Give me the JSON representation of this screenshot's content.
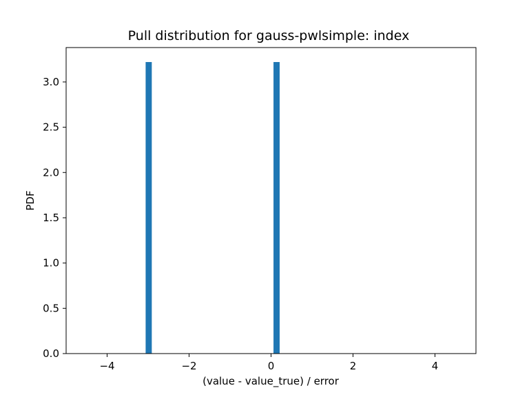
{
  "chart_data": {
    "type": "bar",
    "title": "Pull distribution for gauss-pwlsimple: index",
    "xlabel": "(value - value_true) / error",
    "ylabel": "PDF",
    "xlim": [
      -5,
      5
    ],
    "ylim": [
      0,
      3.38
    ],
    "x_ticks": [
      -4,
      -2,
      0,
      2,
      4
    ],
    "x_tick_labels": [
      "−4",
      "−2",
      "0",
      "2",
      "4"
    ],
    "y_ticks": [
      0,
      0.5,
      1,
      1.5,
      2,
      2.5,
      3
    ],
    "y_tick_labels": [
      "0.0",
      "0.5",
      "1.0",
      "1.5",
      "2.0",
      "2.5",
      "3.0"
    ],
    "bar_color": "#1f77b4",
    "bins": [
      {
        "x_start": -3.06,
        "x_end": -2.91,
        "value": 3.22
      },
      {
        "x_start": 0.06,
        "x_end": 0.21,
        "value": 3.22
      }
    ],
    "grid": false,
    "legend": "none"
  }
}
